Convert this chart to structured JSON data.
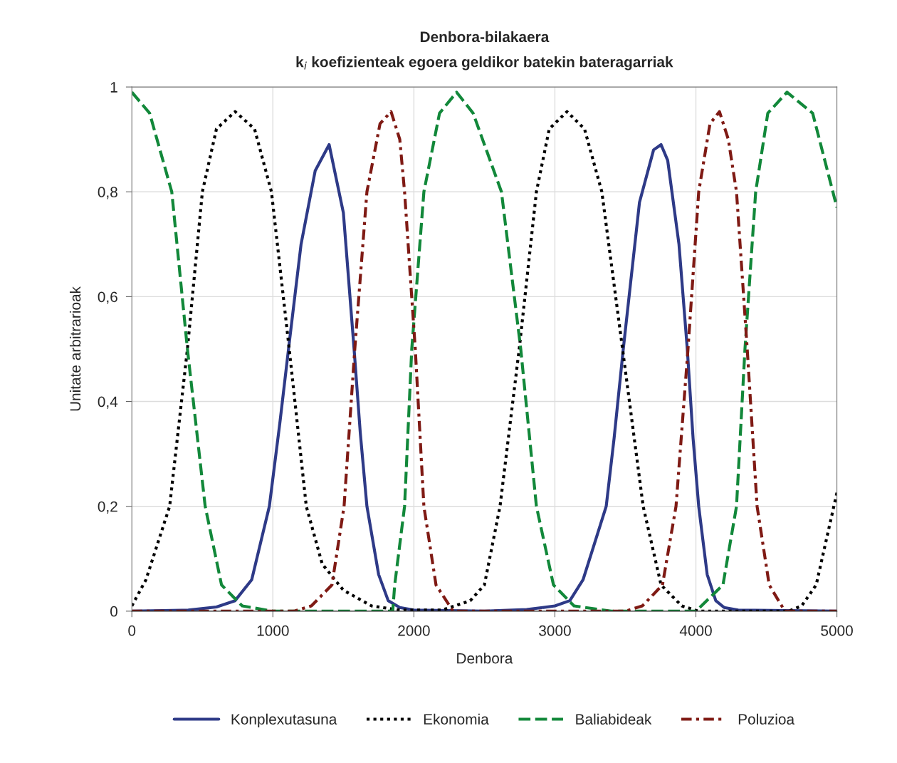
{
  "chart_data": {
    "type": "line",
    "title": "Denbora-bilakaera",
    "subtitle": "k$_{i}$ koefizienteak egoera geldikor batekin bateragarriak",
    "xlabel": "Denbora",
    "ylabel": "Unitate arbitrarioak",
    "xlim": [
      0,
      5000
    ],
    "ylim": [
      0,
      1
    ],
    "xticks": [
      0,
      1000,
      2000,
      3000,
      4000,
      5000
    ],
    "yticks": [
      0,
      {
        "value": 0.2,
        "label": "0,2"
      },
      {
        "value": 0.4,
        "label": "0,4"
      },
      {
        "value": 0.6,
        "label": "0,6"
      },
      {
        "value": 0.8,
        "label": "0,8"
      },
      1
    ],
    "grid": true,
    "legend": "bottom",
    "series": [
      {
        "name": "Konplexutasuna",
        "color": "#2e3a87",
        "line_style": "solid",
        "x": [
          0,
          400,
          600,
          732,
          850,
          975,
          1050,
          1111,
          1200,
          1300,
          1399,
          1500,
          1576,
          1620,
          1667,
          1750,
          1818,
          1900,
          2000,
          2500,
          2800,
          3000,
          3106,
          3200,
          3364,
          3420,
          3485,
          3600,
          3700,
          3753,
          3800,
          3880,
          3939,
          3980,
          4020,
          4080,
          4141,
          4200,
          4300,
          5000
        ],
        "values": [
          0,
          0.002,
          0.008,
          0.02,
          0.06,
          0.2,
          0.36,
          0.5,
          0.7,
          0.84,
          0.89,
          0.76,
          0.5,
          0.34,
          0.2,
          0.07,
          0.02,
          0.007,
          0.002,
          0,
          0.003,
          0.01,
          0.02,
          0.06,
          0.2,
          0.33,
          0.5,
          0.78,
          0.88,
          0.89,
          0.86,
          0.7,
          0.5,
          0.33,
          0.2,
          0.07,
          0.02,
          0.007,
          0.002,
          0
        ]
      },
      {
        "name": "Ekonomia",
        "color": "#000000",
        "line_style": "dotted",
        "x": [
          0,
          100,
          268,
          394,
          500,
          600,
          732,
          870,
          990,
          1116,
          1237,
          1350,
          1500,
          1700,
          1900,
          2200,
          2400,
          2500,
          2611,
          2747,
          2869,
          2960,
          3086,
          3210,
          3333,
          3480,
          3626,
          3753,
          3900,
          4020,
          4657,
          4750,
          4853,
          5000
        ],
        "values": [
          0.01,
          0.06,
          0.2,
          0.5,
          0.8,
          0.92,
          0.953,
          0.92,
          0.8,
          0.5,
          0.2,
          0.09,
          0.04,
          0.01,
          0.002,
          0.002,
          0.02,
          0.05,
          0.2,
          0.5,
          0.8,
          0.92,
          0.953,
          0.92,
          0.8,
          0.5,
          0.2,
          0.05,
          0.01,
          0,
          0,
          0.01,
          0.05,
          0.226
        ]
      },
      {
        "name": "Baliabideak",
        "color": "#12883a",
        "line_style": "dashed",
        "x": [
          0,
          126,
          283,
          394,
          520,
          636,
          783,
          1000,
          1850,
          1864,
          1934,
          1985,
          2071,
          2182,
          2303,
          2420,
          2621,
          2758,
          2869,
          2990,
          3136,
          3400,
          4000,
          4192,
          4288,
          4348,
          4424,
          4510,
          4646,
          4828,
          5000
        ],
        "values": [
          0.99,
          0.95,
          0.8,
          0.5,
          0.2,
          0.05,
          0.01,
          0,
          0,
          0.05,
          0.2,
          0.5,
          0.8,
          0.95,
          0.99,
          0.95,
          0.8,
          0.5,
          0.2,
          0.05,
          0.01,
          0,
          0,
          0.05,
          0.2,
          0.5,
          0.8,
          0.95,
          0.99,
          0.95,
          0.77
        ]
      },
      {
        "name": "Poluzioa",
        "color": "#7f1a14",
        "line_style": "dashdot",
        "x": [
          0,
          1150,
          1273,
          1419,
          1505,
          1581,
          1667,
          1760,
          1838,
          1900,
          1934,
          2010,
          2071,
          2157,
          2278,
          3500,
          3620,
          3763,
          3859,
          3944,
          4020,
          4100,
          4167,
          4230,
          4288,
          4364,
          4434,
          4520,
          4631,
          5000
        ],
        "values": [
          0,
          0,
          0.01,
          0.05,
          0.2,
          0.5,
          0.8,
          0.93,
          0.953,
          0.9,
          0.8,
          0.5,
          0.2,
          0.05,
          0,
          0,
          0.01,
          0.05,
          0.2,
          0.5,
          0.8,
          0.93,
          0.953,
          0.9,
          0.8,
          0.5,
          0.2,
          0.05,
          0,
          0
        ]
      }
    ]
  }
}
